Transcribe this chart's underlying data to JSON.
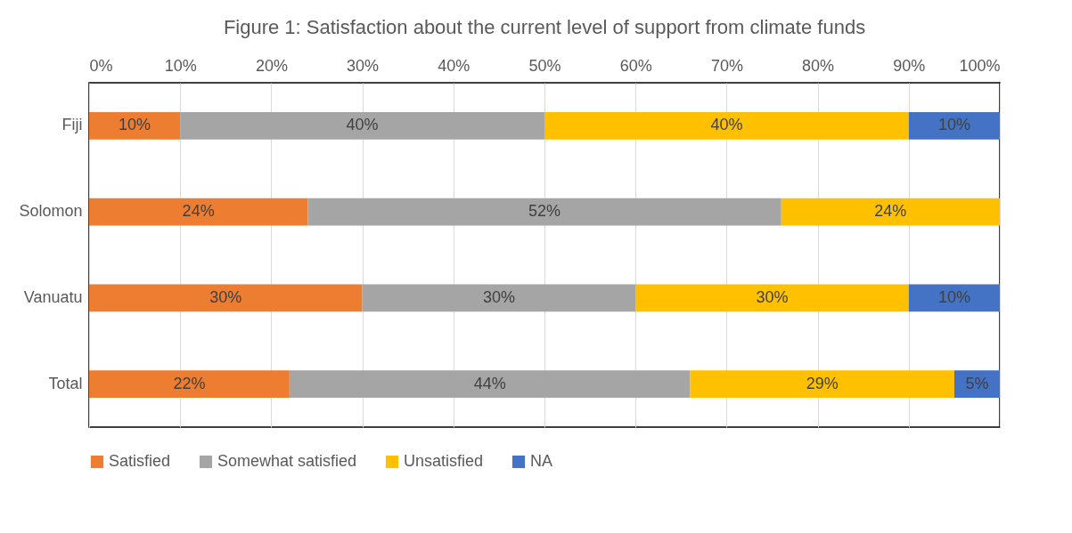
{
  "chart_data": {
    "type": "bar",
    "orientation": "horizontal",
    "stacked": true,
    "title": "Figure 1: Satisfaction about the current level of support from climate funds",
    "categories": [
      "Fiji",
      "Solomon",
      "Vanuatu",
      "Total"
    ],
    "series": [
      {
        "name": "Satisfied",
        "color": "#ed7d31",
        "values": [
          10,
          24,
          30,
          22
        ],
        "value_labels": [
          "10%",
          "24%",
          "30%",
          "22%"
        ]
      },
      {
        "name": "Somewhat satisfied",
        "color": "#a5a5a5",
        "values": [
          40,
          52,
          30,
          44
        ],
        "value_labels": [
          "40%",
          "52%",
          "30%",
          "44%"
        ]
      },
      {
        "name": "Unsatisfied",
        "color": "#ffc000",
        "values": [
          40,
          24,
          30,
          29
        ],
        "value_labels": [
          "40%",
          "24%",
          "30%",
          "29%"
        ]
      },
      {
        "name": "NA",
        "color": "#4472c4",
        "values": [
          10,
          null,
          10,
          5
        ],
        "value_labels": [
          "10%",
          null,
          "10%",
          "5%"
        ]
      }
    ],
    "xlim": [
      0,
      100
    ],
    "xticks": [
      {
        "value": 0,
        "label": "0%"
      },
      {
        "value": 10,
        "label": "10%"
      },
      {
        "value": 20,
        "label": "20%"
      },
      {
        "value": 30,
        "label": "30%"
      },
      {
        "value": 40,
        "label": "40%"
      },
      {
        "value": 50,
        "label": "50%"
      },
      {
        "value": 60,
        "label": "60%"
      },
      {
        "value": 70,
        "label": "70%"
      },
      {
        "value": 80,
        "label": "80%"
      },
      {
        "value": 90,
        "label": "90%"
      },
      {
        "value": 100,
        "label": "100%"
      }
    ],
    "grid": "x",
    "legend": "bottom"
  }
}
